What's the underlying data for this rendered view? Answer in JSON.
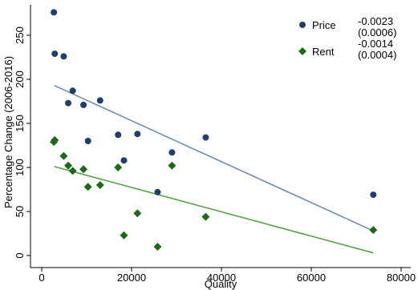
{
  "chart_data": {
    "type": "scatter",
    "xlabel": "Quality",
    "ylabel": "Percentage Change (2006-2016)",
    "xlim": [
      0,
      80000
    ],
    "ylim": [
      0,
      280
    ],
    "x_ticks": [
      "0",
      "20000",
      "40000",
      "60000",
      "80000"
    ],
    "x_tick_values": [
      0,
      20000,
      40000,
      60000,
      80000
    ],
    "y_ticks": [
      "0",
      "50",
      "100",
      "150",
      "200",
      "250"
    ],
    "y_tick_values": [
      0,
      50,
      100,
      150,
      200,
      250
    ],
    "grid": false,
    "legend_position": "top-right",
    "series": [
      {
        "name": "Price",
        "color": "#1f3e6e",
        "marker": "circle",
        "coef": "-0.0023",
        "se": "(0.0006)",
        "fit_color": "#6f8db3",
        "fit": [
          [
            2800,
            193
          ],
          [
            73800,
            28
          ]
        ],
        "points": [
          [
            2700,
            276
          ],
          [
            2900,
            229
          ],
          [
            4900,
            226
          ],
          [
            5900,
            173
          ],
          [
            6900,
            187
          ],
          [
            9300,
            171
          ],
          [
            10300,
            130
          ],
          [
            13000,
            176
          ],
          [
            17000,
            137
          ],
          [
            18300,
            108
          ],
          [
            21300,
            138
          ],
          [
            25800,
            72
          ],
          [
            29000,
            117
          ],
          [
            36500,
            134
          ],
          [
            73800,
            69
          ]
        ]
      },
      {
        "name": "Rent",
        "color": "#1a6a18",
        "marker": "diamond",
        "coef": "-0.0014",
        "se": "(0.0004)",
        "fit_color": "#5aa04a",
        "fit": [
          [
            2800,
            101
          ],
          [
            73800,
            3
          ]
        ],
        "points": [
          [
            2700,
            129
          ],
          [
            2900,
            131
          ],
          [
            4900,
            113
          ],
          [
            5900,
            102
          ],
          [
            6900,
            96
          ],
          [
            9300,
            98
          ],
          [
            10300,
            78
          ],
          [
            13000,
            80
          ],
          [
            17000,
            100
          ],
          [
            18300,
            23
          ],
          [
            21300,
            48
          ],
          [
            25800,
            10
          ],
          [
            29000,
            102
          ],
          [
            36500,
            44
          ],
          [
            73800,
            29
          ]
        ]
      }
    ]
  }
}
